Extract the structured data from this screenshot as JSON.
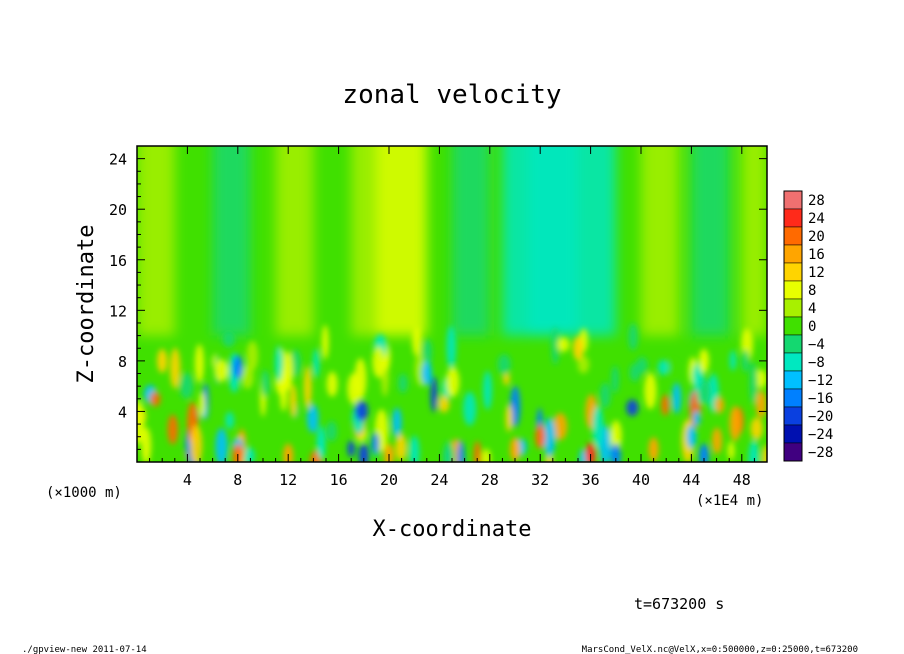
{
  "chart_data": {
    "type": "heatmap",
    "title": "zonal velocity",
    "xlabel": "X-coordinate",
    "ylabel": "Z-coordinate",
    "x_unit_left": "(×1000 m)",
    "x_unit_right": "(×1E4 m)",
    "xlim": [
      0,
      50
    ],
    "ylim": [
      0,
      25
    ],
    "x_ticks": [
      4,
      8,
      12,
      16,
      20,
      24,
      28,
      32,
      36,
      40,
      44,
      48
    ],
    "y_ticks": [
      4,
      8,
      12,
      16,
      20,
      24
    ],
    "colorbar": {
      "levels": [
        28,
        24,
        20,
        16,
        12,
        8,
        4,
        0,
        -4,
        -8,
        -12,
        -16,
        -20,
        -24,
        -28
      ],
      "colors": [
        "#f07070",
        "#ff2a1a",
        "#ff6a00",
        "#ffa500",
        "#ffd400",
        "#e8ff00",
        "#a8f000",
        "#40e000",
        "#14d870",
        "#00e8c0",
        "#00c0ff",
        "#0080ff",
        "#0a40e0",
        "#0010b0",
        "#400080"
      ]
    },
    "field_summary": {
      "background_level": 0,
      "upper_band_high_x": [
        19,
        23
      ],
      "upper_band_low_x": [
        29,
        38
      ],
      "near_surface_extremes": "alternating ±20 plumes below z=10"
    },
    "annotation_time": "t=673200 s"
  },
  "footer": {
    "left": "./gpview-new  2011-07-14",
    "right": "MarsCond_VelX.nc@VelX,x=0:500000,z=0:25000,t=673200"
  }
}
